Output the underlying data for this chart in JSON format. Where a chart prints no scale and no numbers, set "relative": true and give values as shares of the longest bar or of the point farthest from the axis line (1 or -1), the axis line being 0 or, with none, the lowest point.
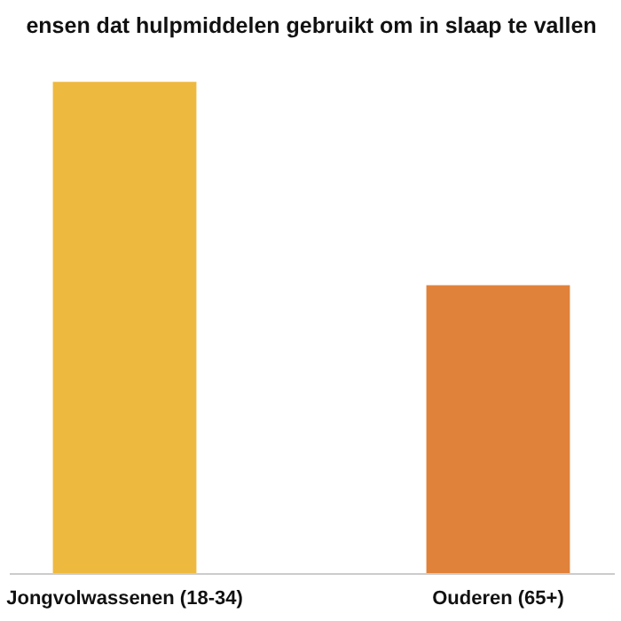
{
  "chart_data": {
    "type": "bar",
    "title": "ensen dat hulpmiddelen gebruikt om in slaap te vallen",
    "relative": true,
    "categories": [
      "Jongvolwassenen (18-34)",
      "Ouderen (65+)"
    ],
    "values": [
      1,
      0.586
    ],
    "colors": [
      "#eeb93f",
      "#e0823a"
    ]
  }
}
